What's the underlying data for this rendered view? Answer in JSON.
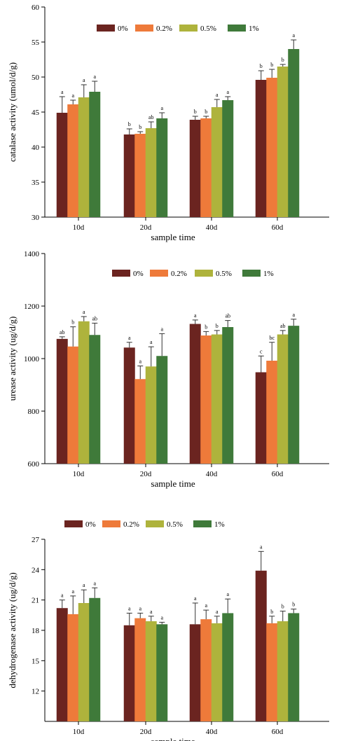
{
  "chart_data": [
    {
      "type": "bar",
      "title": "",
      "xlabel": "sample time",
      "ylabel": "catalase activity (umol/d/g)",
      "ylim": [
        30,
        60
      ],
      "yticks": [
        30,
        35,
        40,
        45,
        50,
        55,
        60
      ],
      "categories": [
        "10d",
        "20d",
        "40d",
        "60d"
      ],
      "legend": {
        "placement": "top",
        "entries": [
          "0%",
          "0.2%",
          "0.5%",
          "1%"
        ]
      },
      "colors": [
        "#6b2420",
        "#ee7a3a",
        "#aeb33c",
        "#3f7a3a"
      ],
      "series": [
        {
          "name": "0%",
          "values": [
            44.9,
            41.8,
            43.9,
            49.6
          ],
          "errors": [
            2.3,
            0.8,
            0.5,
            1.3
          ],
          "letters": [
            "a",
            "b",
            "b",
            "b"
          ]
        },
        {
          "name": "0.2%",
          "values": [
            46.1,
            41.9,
            44.1,
            49.9
          ],
          "errors": [
            0.6,
            0.3,
            0.3,
            1.2
          ],
          "letters": [
            "a",
            "b",
            "b",
            "b"
          ]
        },
        {
          "name": "0.5%",
          "values": [
            47.1,
            42.7,
            45.7,
            51.5
          ],
          "errors": [
            1.8,
            0.9,
            1.1,
            0.3
          ],
          "letters": [
            "a",
            "ab",
            "a",
            "b"
          ]
        },
        {
          "name": "1%",
          "values": [
            47.9,
            44.1,
            46.7,
            54.0
          ],
          "errors": [
            1.5,
            0.8,
            0.5,
            1.3
          ],
          "letters": [
            "a",
            "a",
            "a",
            "a"
          ]
        }
      ]
    },
    {
      "type": "bar",
      "title": "",
      "xlabel": "sample time",
      "ylabel": "urease activity (ug/d/g)",
      "ylim": [
        600,
        1400
      ],
      "yticks": [
        600,
        800,
        1000,
        1200,
        1400
      ],
      "categories": [
        "10d",
        "20d",
        "40d",
        "60d"
      ],
      "legend": {
        "placement": "top",
        "entries": [
          "0%",
          "0.2%",
          "0.5%",
          "1%"
        ]
      },
      "colors": [
        "#6b2420",
        "#ee7a3a",
        "#aeb33c",
        "#3f7a3a"
      ],
      "series": [
        {
          "name": "0%",
          "values": [
            1075,
            1042,
            1132,
            948
          ],
          "errors": [
            8,
            20,
            15,
            62
          ],
          "letters": [
            "ab",
            "a",
            "a",
            "c"
          ]
        },
        {
          "name": "0.2%",
          "values": [
            1046,
            922,
            1088,
            992
          ],
          "errors": [
            75,
            50,
            15,
            70
          ],
          "letters": [
            "b",
            "a",
            "b",
            "bc"
          ]
        },
        {
          "name": "0.5%",
          "values": [
            1142,
            970,
            1092,
            1092
          ],
          "errors": [
            18,
            75,
            15,
            15
          ],
          "letters": [
            "a",
            "a",
            "b",
            "ab"
          ]
        },
        {
          "name": "1%",
          "values": [
            1090,
            1010,
            1120,
            1125
          ],
          "errors": [
            45,
            85,
            25,
            25
          ],
          "letters": [
            "ab",
            "a",
            "ab",
            "a"
          ]
        }
      ]
    },
    {
      "type": "bar",
      "title": "",
      "xlabel": "sample time",
      "ylabel": "dehydrogenase activity (ug/d/g)",
      "ylim": [
        9,
        27
      ],
      "yticks": [
        12,
        15,
        18,
        21,
        24,
        27
      ],
      "categories": [
        "10d",
        "20d",
        "40d",
        "60d"
      ],
      "legend": {
        "placement": "top",
        "entries": [
          "0%",
          "0.2%",
          "0.5%",
          "1%"
        ]
      },
      "colors": [
        "#6b2420",
        "#ee7a3a",
        "#aeb33c",
        "#3f7a3a"
      ],
      "series": [
        {
          "name": "0%",
          "values": [
            20.2,
            18.5,
            18.6,
            23.9
          ],
          "errors": [
            0.8,
            1.2,
            2.1,
            1.9
          ],
          "letters": [
            "a",
            "a",
            "a",
            "a"
          ]
        },
        {
          "name": "0.2%",
          "values": [
            19.6,
            19.2,
            19.1,
            18.7
          ],
          "errors": [
            1.8,
            0.5,
            0.9,
            0.7
          ],
          "letters": [
            "a",
            "a",
            "a",
            "b"
          ]
        },
        {
          "name": "0.5%",
          "values": [
            20.7,
            18.9,
            18.7,
            18.9
          ],
          "errors": [
            1.3,
            0.5,
            0.7,
            1.0
          ],
          "letters": [
            "a",
            "a",
            "a",
            "b"
          ]
        },
        {
          "name": "1%",
          "values": [
            21.2,
            18.6,
            19.7,
            19.7
          ],
          "errors": [
            1.0,
            0.2,
            1.4,
            0.4
          ],
          "letters": [
            "a",
            "a",
            "a",
            "b"
          ]
        }
      ]
    }
  ]
}
